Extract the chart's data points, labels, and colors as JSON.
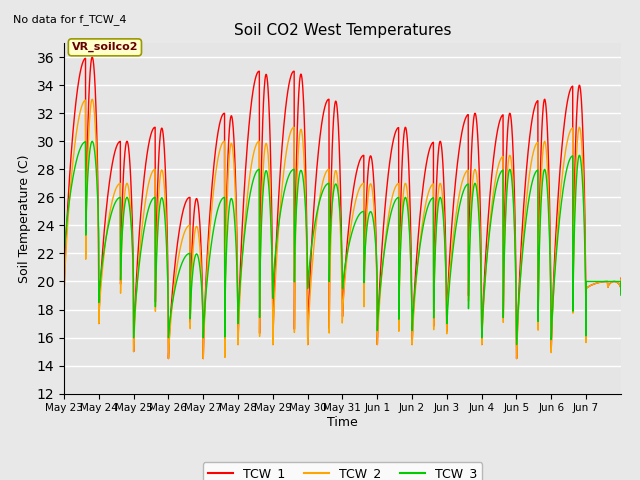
{
  "title": "Soil CO2 West Temperatures",
  "subtitle": "No data for f_TCW_4",
  "xlabel": "Time",
  "ylabel": "Soil Temperature (C)",
  "ylim": [
    12,
    37
  ],
  "yticks": [
    12,
    14,
    16,
    18,
    20,
    22,
    24,
    26,
    28,
    30,
    32,
    34,
    36
  ],
  "annotation_label": "VR_soilco2",
  "background_color": "#e8e8e8",
  "plot_bg_color": "#e5e5e5",
  "line_colors": {
    "TCW_1": "#ff0000",
    "TCW_2": "#ffa500",
    "TCW_3": "#00cc00"
  },
  "x_tick_labels": [
    "May 23",
    "May 24",
    "May 25",
    "May 26",
    "May 27",
    "May 28",
    "May 29",
    "May 30",
    "May 31",
    "Jun 1",
    "Jun 2",
    "Jun 3",
    "Jun 4",
    "Jun 5",
    "Jun 6",
    "Jun 7"
  ],
  "num_days": 16
}
